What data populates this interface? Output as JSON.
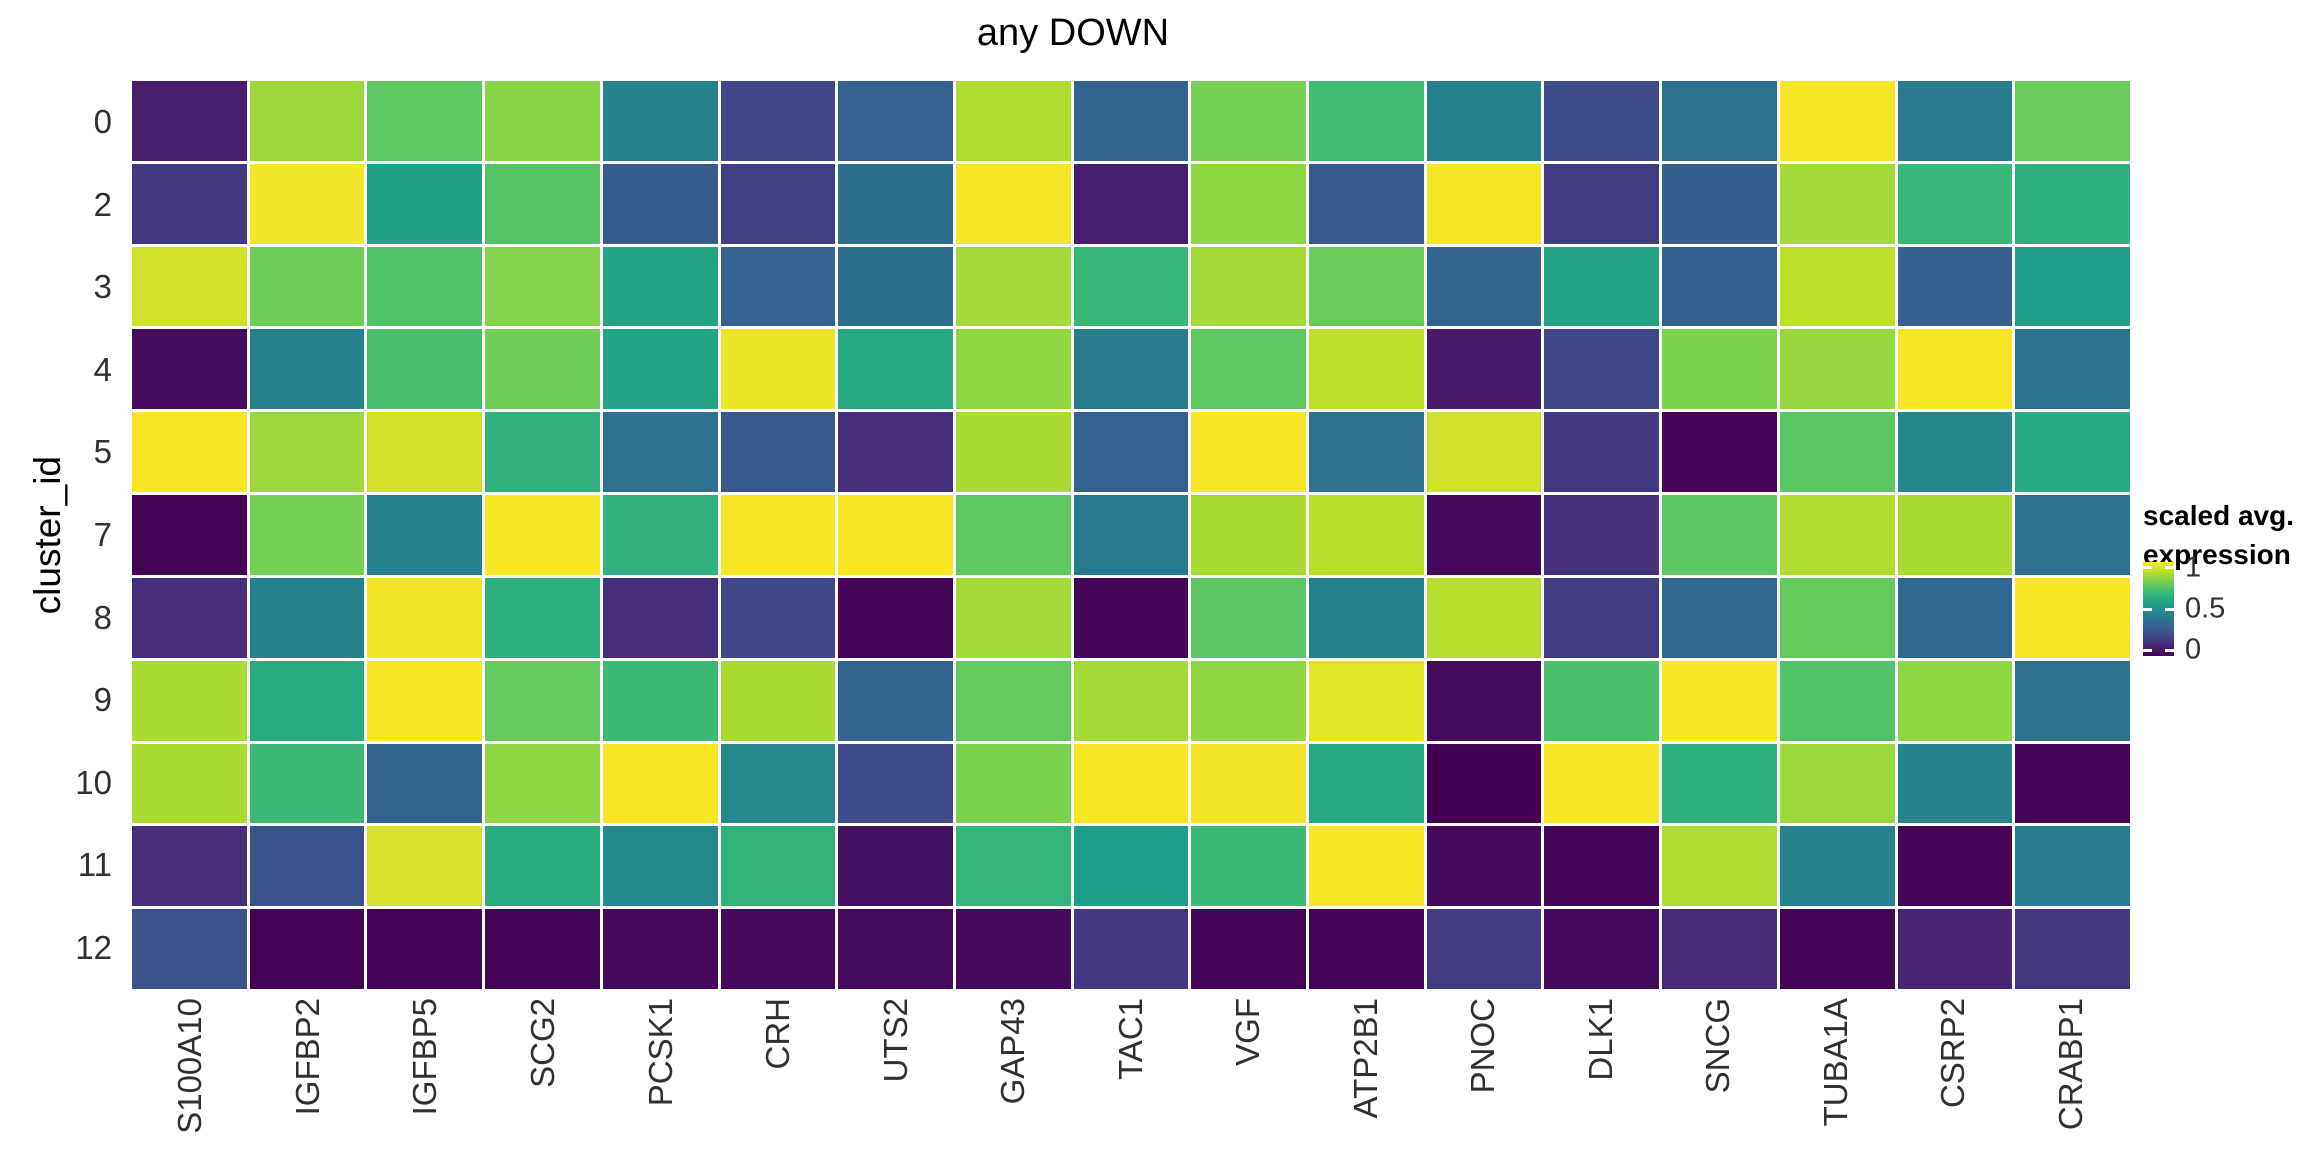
{
  "title": "any DOWN",
  "y_axis": {
    "title": "cluster_id",
    "tick_labels": [
      "0",
      "2",
      "3",
      "4",
      "5",
      "7",
      "8",
      "9",
      "10",
      "11",
      "12"
    ]
  },
  "x_axis": {
    "tick_labels": [
      "S100A10",
      "IGFBP2",
      "IGFBP5",
      "SCG2",
      "PCSK1",
      "CRH",
      "UTS2",
      "GAP43",
      "TAC1",
      "VGF",
      "ATP2B1",
      "PNOC",
      "DLK1",
      "SNCG",
      "TUBA1A",
      "CSRP2",
      "CRABP1"
    ]
  },
  "legend": {
    "title_line1": "scaled avg.",
    "title_line2": "expression",
    "tick_labels": [
      "1",
      "0.5",
      "0"
    ],
    "tick_positions_from_top": [
      0.06,
      0.5,
      0.94
    ]
  },
  "colors": {
    "background": "#ffffff",
    "panel_gap": "#ffffff",
    "title_text": "#000000",
    "tick_text": "#303030",
    "viridis_stops": [
      "#440154",
      "#482878",
      "#3e4989",
      "#31688e",
      "#26828e",
      "#1f9e89",
      "#35b779",
      "#6ece58",
      "#b5de2b",
      "#fde725"
    ]
  },
  "chart_data": {
    "type": "heatmap",
    "title": "any DOWN",
    "xlabel": "",
    "ylabel": "cluster_id",
    "x_categories": [
      "S100A10",
      "IGFBP2",
      "IGFBP5",
      "SCG2",
      "PCSK1",
      "CRH",
      "UTS2",
      "GAP43",
      "TAC1",
      "VGF",
      "ATP2B1",
      "PNOC",
      "DLK1",
      "SNCG",
      "TUBA1A",
      "CSRP2",
      "CRABP1"
    ],
    "y_categories": [
      "0",
      "2",
      "3",
      "4",
      "5",
      "7",
      "8",
      "9",
      "10",
      "11",
      "12"
    ],
    "value_name": "scaled avg. expression",
    "value_range": [
      0,
      1
    ],
    "colormap": "viridis",
    "legend_position": "right",
    "grid": "white gaps between tiles",
    "values": [
      [
        0.08,
        0.85,
        0.75,
        0.82,
        0.45,
        0.22,
        0.31,
        0.88,
        0.32,
        0.79,
        0.69,
        0.44,
        0.23,
        0.37,
        0.99,
        0.42,
        0.77
      ],
      [
        0.17,
        0.98,
        0.57,
        0.73,
        0.29,
        0.19,
        0.36,
        0.99,
        0.08,
        0.83,
        0.28,
        0.99,
        0.18,
        0.29,
        0.86,
        0.67,
        0.63
      ],
      [
        0.93,
        0.78,
        0.72,
        0.81,
        0.58,
        0.31,
        0.36,
        0.86,
        0.67,
        0.86,
        0.77,
        0.32,
        0.58,
        0.3,
        0.9,
        0.3,
        0.55
      ],
      [
        0.03,
        0.44,
        0.71,
        0.78,
        0.58,
        0.97,
        0.6,
        0.83,
        0.42,
        0.75,
        0.9,
        0.07,
        0.22,
        0.8,
        0.84,
        0.99,
        0.38
      ],
      [
        0.99,
        0.85,
        0.93,
        0.64,
        0.37,
        0.28,
        0.13,
        0.87,
        0.31,
        0.99,
        0.37,
        0.93,
        0.17,
        0.01,
        0.74,
        0.46,
        0.6
      ],
      [
        0.01,
        0.79,
        0.44,
        0.99,
        0.64,
        0.99,
        0.99,
        0.75,
        0.41,
        0.87,
        0.89,
        0.02,
        0.14,
        0.74,
        0.88,
        0.87,
        0.37
      ],
      [
        0.13,
        0.44,
        0.98,
        0.63,
        0.13,
        0.22,
        0.01,
        0.86,
        0.01,
        0.74,
        0.44,
        0.89,
        0.18,
        0.33,
        0.76,
        0.33,
        0.99
      ],
      [
        0.87,
        0.61,
        0.99,
        0.76,
        0.68,
        0.87,
        0.32,
        0.76,
        0.86,
        0.83,
        0.96,
        0.03,
        0.71,
        0.99,
        0.72,
        0.83,
        0.37
      ],
      [
        0.87,
        0.68,
        0.32,
        0.83,
        0.99,
        0.47,
        0.23,
        0.8,
        0.99,
        0.98,
        0.6,
        0.0,
        0.99,
        0.63,
        0.85,
        0.45,
        0.01
      ],
      [
        0.13,
        0.26,
        0.94,
        0.62,
        0.48,
        0.65,
        0.04,
        0.66,
        0.55,
        0.68,
        0.99,
        0.02,
        0.01,
        0.88,
        0.45,
        0.01,
        0.42
      ],
      [
        0.26,
        0.01,
        0.01,
        0.01,
        0.02,
        0.02,
        0.03,
        0.02,
        0.17,
        0.01,
        0.01,
        0.18,
        0.02,
        0.12,
        0.01,
        0.1,
        0.16
      ]
    ]
  }
}
